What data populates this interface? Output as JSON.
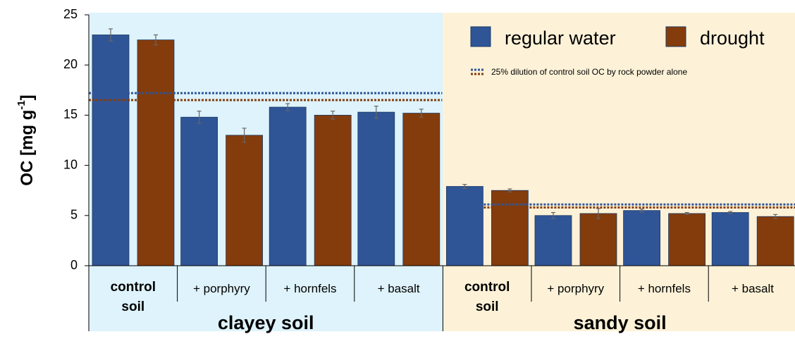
{
  "chart_data": {
    "type": "bar",
    "y_label": [
      "OC [mg g",
      "-1",
      "]"
    ],
    "categories": [
      "control soil",
      "+ porphyry",
      "+ hornfels",
      "+ basalt",
      "control soil",
      "+ porphyry",
      "+ hornfels",
      "+ basalt"
    ],
    "groups": [
      {
        "name": "clayey soil",
        "color": "#def3fb"
      },
      {
        "name": "sandy soil",
        "color": "#fdf2d8"
      }
    ],
    "series": [
      {
        "name": "regular water",
        "color": "#2f5597",
        "values": [
          23.0,
          14.8,
          15.8,
          15.3,
          7.9,
          5.0,
          5.5,
          5.3
        ],
        "errors": [
          0.6,
          0.6,
          0.35,
          0.6,
          0.2,
          0.3,
          0.15,
          0.1
        ]
      },
      {
        "name": "drought",
        "color": "#843c0c",
        "values": [
          22.5,
          13.0,
          15.0,
          15.2,
          7.5,
          5.2,
          5.2,
          4.9
        ],
        "errors": [
          0.5,
          0.7,
          0.4,
          0.4,
          0.15,
          0.5,
          0.1,
          0.2
        ]
      }
    ],
    "reference_lines": {
      "label": "25% dilution of control soil OC by rock powder alone",
      "values": [
        [
          17.2,
          16.5
        ],
        [
          6.1,
          5.8
        ]
      ]
    },
    "ylim": [
      0,
      25
    ],
    "yticks": [
      0,
      5,
      10,
      15,
      20,
      25
    ],
    "grid": false
  }
}
